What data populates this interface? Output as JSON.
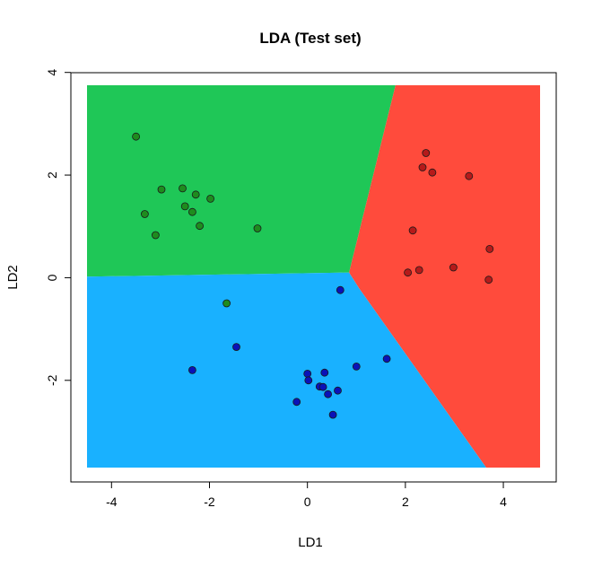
{
  "chart_data": {
    "type": "scatter",
    "title": "LDA (Test set)",
    "xlabel": "LD1",
    "ylabel": "LD2",
    "xlim": [
      -4.5,
      4.75
    ],
    "ylim": [
      -3.7,
      3.75
    ],
    "x_ticks": [
      -4,
      -2,
      0,
      2,
      4
    ],
    "y_ticks": [
      -2,
      0,
      2,
      4
    ],
    "x_tick_labels": [
      "-4",
      "-2",
      "0",
      "2",
      "4"
    ],
    "y_tick_labels": [
      "-2",
      "0",
      "2",
      "4"
    ],
    "grid": false,
    "legend": "none",
    "regions": [
      {
        "class": "1",
        "color": "#1FC757",
        "polygon": [
          [
            -4.5,
            3.75
          ],
          [
            1.8,
            3.75
          ],
          [
            0.85,
            0.1
          ],
          [
            -4.5,
            0.02
          ]
        ]
      },
      {
        "class": "2",
        "color": "#FF4B3C",
        "polygon": [
          [
            1.8,
            3.75
          ],
          [
            4.75,
            3.75
          ],
          [
            4.75,
            -3.7
          ],
          [
            3.65,
            -3.7
          ],
          [
            1.05,
            -0.2
          ],
          [
            0.85,
            0.1
          ]
        ]
      },
      {
        "class": "3",
        "color": "#19B1FF",
        "polygon": [
          [
            -4.5,
            0.02
          ],
          [
            0.85,
            0.1
          ],
          [
            1.05,
            -0.2
          ],
          [
            3.65,
            -3.7
          ],
          [
            -4.5,
            -3.7
          ]
        ]
      }
    ],
    "series": [
      {
        "color": "#1E8C1E",
        "x": [
          -3.5,
          -2.98,
          -3.32,
          -3.1,
          -2.55,
          -2.5,
          -2.28,
          -2.35,
          -2.2,
          -1.98,
          -1.02,
          -1.65
        ],
        "y": [
          2.75,
          1.72,
          1.24,
          0.83,
          1.74,
          1.39,
          1.62,
          1.28,
          1.01,
          1.54,
          0.96,
          -0.5
        ]
      },
      {
        "color": "#B51A1A",
        "x": [
          2.42,
          2.35,
          2.55,
          3.3,
          2.15,
          3.72,
          2.05,
          2.28,
          2.98,
          3.7
        ],
        "y": [
          2.43,
          2.15,
          2.05,
          1.98,
          0.92,
          0.56,
          0.1,
          0.15,
          0.2,
          -0.04
        ]
      },
      {
        "color": "#0A12B8",
        "x": [
          0.67,
          1.62,
          -1.45,
          -2.35,
          1.0,
          0.0,
          0.35,
          0.02,
          0.25,
          0.32,
          0.42,
          0.62,
          -0.22,
          0.52
        ],
        "y": [
          -0.24,
          -1.58,
          -1.35,
          -1.8,
          -1.73,
          -1.87,
          -1.85,
          -2.0,
          -2.12,
          -2.13,
          -2.27,
          -2.2,
          -2.42,
          -2.67
        ]
      }
    ]
  }
}
